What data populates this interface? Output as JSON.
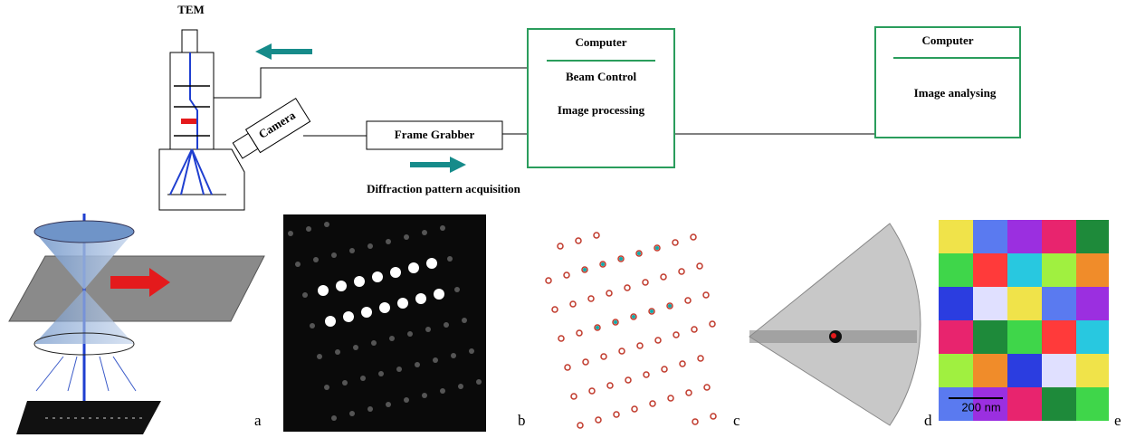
{
  "tem": {
    "label": "TEM",
    "camera": "Camera"
  },
  "frame_grabber": "Frame Grabber",
  "acquisition": "Diffraction pattern acquisition",
  "computer1": {
    "title": "Computer",
    "lines": [
      "Beam Control",
      "Image processing"
    ]
  },
  "computer2": {
    "title": "Computer",
    "lines": [
      "Image analysing"
    ]
  },
  "panels": {
    "labels": [
      "a",
      "b",
      "c",
      "d",
      "e"
    ],
    "scale_bar": "200 nm"
  }
}
